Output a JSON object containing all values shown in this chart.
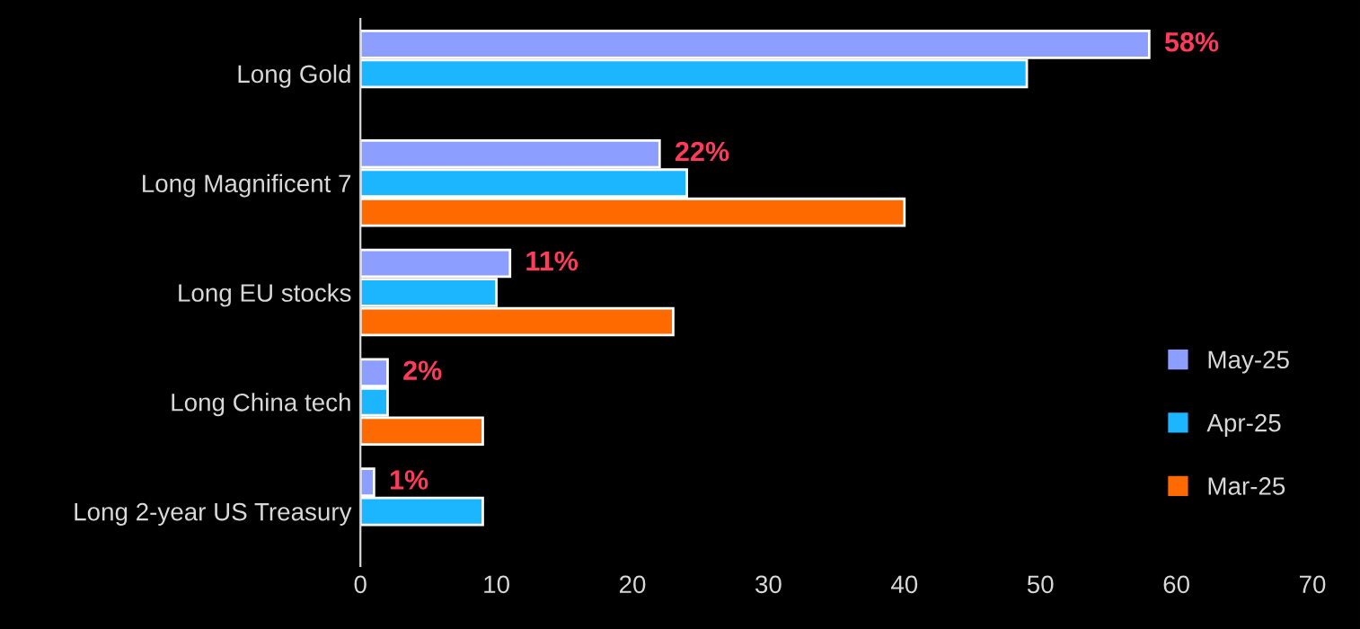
{
  "chart_data": {
    "type": "bar",
    "orientation": "horizontal",
    "categories": [
      "Long Gold",
      "Long Magnificent 7",
      "Long EU stocks",
      "Long China tech",
      "Long 2-year US Treasury"
    ],
    "series": [
      {
        "name": "May-25",
        "color": "#8c9eff",
        "values": [
          58,
          22,
          11,
          2,
          1
        ],
        "value_labels": [
          "58%",
          "22%",
          "11%",
          "2%",
          "1%"
        ]
      },
      {
        "name": "Apr-25",
        "color": "#1cb5ff",
        "values": [
          49,
          24,
          10,
          2,
          9
        ]
      },
      {
        "name": "Mar-25",
        "color": "#ff6a00",
        "values": [
          null,
          40,
          23,
          9,
          null
        ]
      }
    ],
    "xlim": [
      0,
      70
    ],
    "xticks": [
      0,
      10,
      20,
      30,
      40,
      50,
      60,
      70
    ],
    "grid": false,
    "legend": "bottom right"
  }
}
